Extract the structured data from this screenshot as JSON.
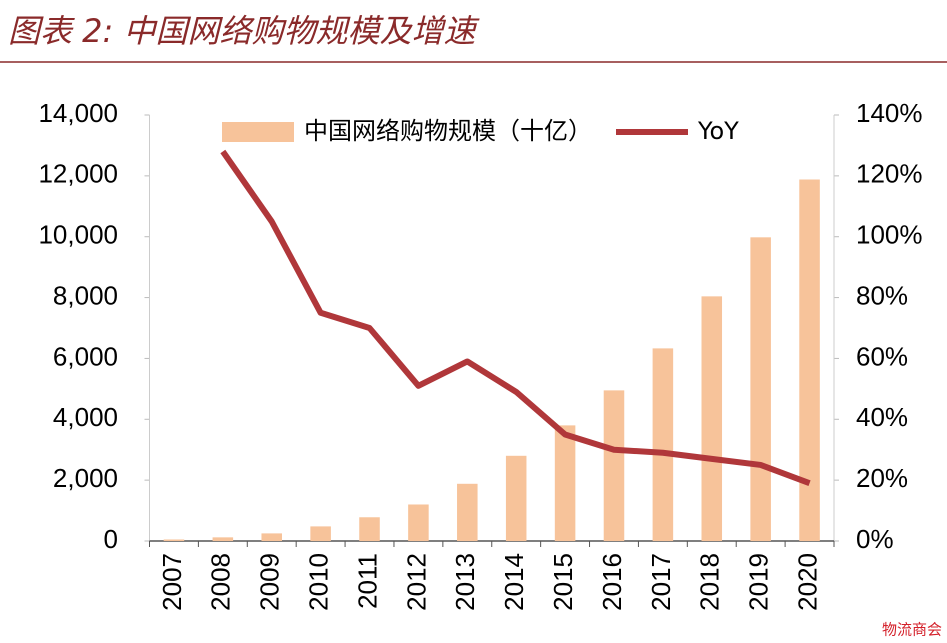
{
  "chart_data": {
    "type": "bar-line",
    "title": "图表 2:  中国网络购物规模及增速",
    "categories": [
      "2007",
      "2008",
      "2009",
      "2010",
      "2011",
      "2012",
      "2013",
      "2014",
      "2015",
      "2016",
      "2017",
      "2018",
      "2019",
      "2020"
    ],
    "series": [
      {
        "name": "中国网络购物规模（十亿）",
        "color": "#f7c39a",
        "type": "bar",
        "values": [
          50,
          120,
          250,
          480,
          780,
          1200,
          1880,
          2800,
          3800,
          4950,
          6330,
          8040,
          9980,
          11880
        ]
      },
      {
        "name": "YoY",
        "color": "#b0373a",
        "type": "line",
        "axis": "y2",
        "values": [
          null,
          128,
          105,
          75,
          70,
          51,
          59,
          49,
          35,
          30,
          29,
          27,
          25,
          19
        ]
      }
    ],
    "ylim": [
      0,
      14000
    ],
    "yticks": [
      0,
      {
        "value": 2000,
        "label": "2,000"
      },
      {
        "value": 4000,
        "label": "4,000"
      },
      {
        "value": 6000,
        "label": "6,000"
      },
      {
        "value": 8000,
        "label": "8,000"
      },
      {
        "value": 10000,
        "label": "10,000"
      },
      {
        "value": 12000,
        "label": "12,000"
      },
      {
        "value": 14000,
        "label": "14,000"
      }
    ],
    "y2lim": [
      0,
      140
    ],
    "y2ticks": [
      {
        "value": 0,
        "label": "0%"
      },
      {
        "value": 20,
        "label": "20%"
      },
      {
        "value": 40,
        "label": "40%"
      },
      {
        "value": 60,
        "label": "60%"
      },
      {
        "value": 80,
        "label": "80%"
      },
      {
        "value": 100,
        "label": "100%"
      },
      {
        "value": 120,
        "label": "120%"
      },
      {
        "value": 140,
        "label": "140%"
      }
    ],
    "legend": "top",
    "watermark": "物流商会"
  }
}
